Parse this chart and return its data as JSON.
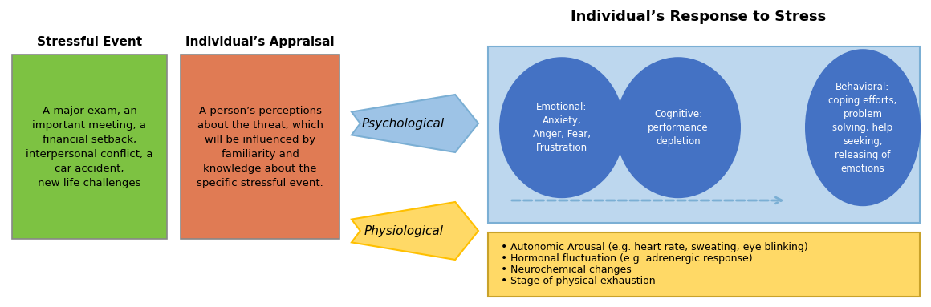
{
  "title": "Individual’s Response to Stress",
  "stressful_event_label": "Stressful Event",
  "stressful_event_text": "A major exam, an\nimportant meeting, a\nfinancial setback,\ninterpersonal conflict, a\ncar accident,\nnew life challenges",
  "appraisal_label": "Individual’s Appraisal",
  "appraisal_text": "A person’s perceptions\nabout the threat, which\nwill be influenced by\nfamiliarity and\nknowledge about the\nspecific stressful event.",
  "psychological_label": "Psychological",
  "physiological_label": "Physiological",
  "circle1_text": "Emotional:\nAnxiety,\nAnger, Fear,\nFrustration",
  "circle2_text": "Cognitive:\nperformance\ndepletion",
  "circle3_text": "Behavioral:\ncoping efforts,\nproblem\nsolving, help\nseeking,\nreleasing of\nemotions",
  "physio_bullets": [
    "Autonomic Arousal (e.g. heart rate, sweating, eye blinking)",
    "Hormonal fluctuation (e.g. adrenergic response)",
    "Neurochemical changes",
    "Stage of physical exhaustion"
  ],
  "green_box_color": "#7DC242",
  "orange_box_color": "#E07B54",
  "blue_bg_color": "#BDD7EE",
  "blue_circle_color": "#4472C4",
  "yellow_box_color": "#FFD966",
  "psych_arrow_color": "#9DC3E6",
  "physio_arrow_color": "#FFD966",
  "physio_arrow_edge": "#FFC000",
  "psych_arrow_edge": "#7BAFD4",
  "dashed_arrow_color": "#7BAFD4",
  "white": "#FFFFFF",
  "black": "#000000",
  "fig_w": 11.6,
  "fig_h": 3.83,
  "dpi": 100
}
